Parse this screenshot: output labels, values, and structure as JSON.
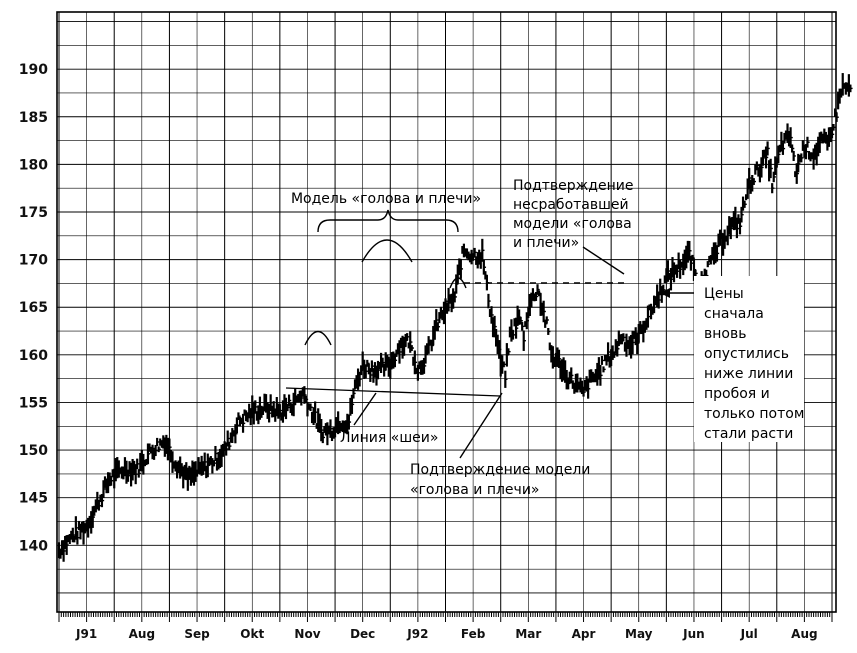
{
  "chart_data": {
    "type": "bar",
    "subtype": "ohlc-price-bars",
    "title": "",
    "xlabel": "",
    "ylabel": "",
    "ylim": [
      133,
      196
    ],
    "yticks": [
      140,
      145,
      150,
      155,
      160,
      165,
      170,
      175,
      180,
      185,
      190
    ],
    "month_labels": [
      "J91",
      "Aug",
      "Sep",
      "Okt",
      "Nov",
      "Dec",
      "J92",
      "Feb",
      "Mar",
      "Apr",
      "May",
      "Jun",
      "Jul",
      "Aug"
    ],
    "grid": true,
    "price_path": [
      [
        0,
        139.5
      ],
      [
        3,
        141
      ],
      [
        6,
        142
      ],
      [
        8,
        144
      ],
      [
        11,
        147
      ],
      [
        14,
        148
      ],
      [
        17,
        148
      ],
      [
        20,
        150
      ],
      [
        23,
        151
      ],
      [
        25,
        149
      ],
      [
        28,
        147
      ],
      [
        31,
        148
      ],
      [
        34,
        149
      ],
      [
        36,
        150
      ],
      [
        39,
        153
      ],
      [
        42,
        154
      ],
      [
        45,
        154.5
      ],
      [
        48,
        154
      ],
      [
        51,
        155
      ],
      [
        53,
        156
      ],
      [
        55,
        154
      ],
      [
        57,
        152
      ],
      [
        59,
        152
      ],
      [
        61,
        153
      ],
      [
        63,
        153
      ],
      [
        64,
        156
      ],
      [
        66,
        159
      ],
      [
        68,
        158.5
      ],
      [
        70,
        158.5
      ],
      [
        72,
        159
      ],
      [
        74,
        161
      ],
      [
        76,
        161.5
      ],
      [
        78,
        158.5
      ],
      [
        80,
        160
      ],
      [
        82,
        163
      ],
      [
        84,
        165
      ],
      [
        86,
        166
      ],
      [
        87,
        169
      ],
      [
        88,
        171
      ],
      [
        90,
        170.5
      ],
      [
        92,
        170.5
      ],
      [
        93,
        167
      ],
      [
        94,
        164
      ],
      [
        95,
        162
      ],
      [
        96,
        159
      ],
      [
        97,
        158
      ],
      [
        98,
        162
      ],
      [
        100,
        164
      ],
      [
        101,
        162
      ],
      [
        102,
        165
      ],
      [
        104,
        167
      ],
      [
        105,
        165
      ],
      [
        106,
        163
      ],
      [
        107,
        160
      ],
      [
        109,
        159
      ],
      [
        110,
        158
      ],
      [
        112,
        157
      ],
      [
        114,
        156
      ],
      [
        115,
        157
      ],
      [
        117,
        158
      ],
      [
        119,
        159.5
      ],
      [
        121,
        160.5
      ],
      [
        122,
        162
      ],
      [
        124,
        161
      ],
      [
        126,
        162
      ],
      [
        128,
        164
      ],
      [
        130,
        166
      ],
      [
        132,
        168
      ],
      [
        134,
        169
      ],
      [
        135,
        169.5
      ],
      [
        137,
        170.5
      ],
      [
        138,
        169
      ],
      [
        139,
        167
      ],
      [
        140,
        168.5
      ],
      [
        142,
        170
      ],
      [
        144,
        172
      ],
      [
        146,
        173.5
      ],
      [
        148,
        174
      ],
      [
        149,
        176
      ],
      [
        150,
        178
      ],
      [
        152,
        179.5
      ],
      [
        154,
        181
      ],
      [
        155,
        178
      ],
      [
        157,
        182
      ],
      [
        159,
        183
      ],
      [
        160,
        179
      ],
      [
        162,
        182
      ],
      [
        164,
        181
      ],
      [
        166,
        182.5
      ],
      [
        167,
        182
      ],
      [
        169,
        185.5
      ],
      [
        170,
        188
      ],
      [
        172,
        188
      ]
    ],
    "annotations": {
      "head_shoulders": "Модель «голова и плечи»",
      "neckline": "Линия «шеи»",
      "confirmation": [
        "Подтверждение модели",
        "«голова и плечи»"
      ],
      "failed_confirmation": [
        "Подтверждение",
        "несработавшей",
        "модели «голова",
        "и плечи»"
      ],
      "prices_note": [
        "Цены",
        "сначала",
        "вновь",
        "опустились",
        "ниже линии",
        "пробоя и",
        "только потом",
        "стали расти"
      ]
    }
  }
}
